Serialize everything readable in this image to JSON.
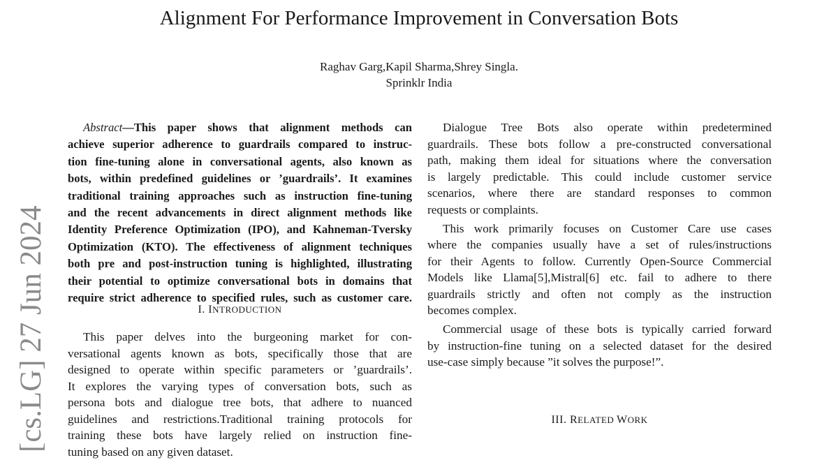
{
  "title": "Alignment For Performance Improvement in Conversation Bots",
  "authors": "Raghav Garg,Kapil Sharma,Shrey Singla.",
  "affiliation": "Sprinklr India",
  "arxiv_stamp": "[cs.LG]  27 Jun 2024",
  "abstract": {
    "label": "Abstract",
    "lines": [
      "—This paper shows that alignment methods can",
      "achieve superior adherence to guardrails compared to instruc-",
      "tion fine-tuning alone in conversational agents, also known as",
      "bots, within predefined guidelines or ’guardrails’. It examines",
      "traditional training approaches such as instruction fine-tuning",
      "and the recent advancements in direct alignment methods like",
      "Identity Preference Optimization (IPO), and Kahneman-Tversky",
      "Optimization (KTO). The effectiveness of alignment techniques",
      "both pre and post-instruction tuning is highlighted, illustrating",
      "their potential to optimize conversational bots in domains that",
      "require strict adherence to specified rules, such as customer care."
    ]
  },
  "sections": {
    "intro": {
      "num": "I.",
      "first": "I",
      "rest": "NTRODUCTION"
    },
    "related": {
      "num": "III.",
      "first": "R",
      "rest": "ELATED ",
      "first2": "W",
      "rest2": "ORK"
    }
  },
  "intro_lines": [
    "This paper delves into the burgeoning market for con-",
    "versational agents known as bots, specifically those that are",
    "designed to operate within specific parameters or ’guardrails’.",
    "It explores the varying types of conversation bots, such as",
    "persona bots and dialogue tree bots, that adhere to nuanced",
    "guidelines and restrictions.Traditional training protocols for",
    "training these bots have largely relied on instruction fine-",
    "tuning based on any given dataset."
  ],
  "right_paragraphs": [
    [
      "Dialogue Tree Bots also operate within predetermined",
      "guardrails. These bots follow a pre-constructed conversational",
      "path, making them ideal for situations where the conversation",
      "is largely predictable. This could include customer service",
      "scenarios, where there are standard responses to common",
      "requests or complaints."
    ],
    [
      "This work primarily focuses on Customer Care use cases",
      "where the companies usually have a set of rules/instructions",
      "for their Agents to follow. Currently Open-Source Commercial",
      "Models like Llama[5],Mistral[6] etc. fail to adhere to there",
      "guardrails strictly and often not comply as the instruction",
      "becomes complex."
    ],
    [
      "Commercial usage of these bots is typically carried forward",
      "by instruction-fine tuning on a selected dataset for the desired",
      "use-case simply because ”it solves the purpose!”."
    ]
  ]
}
